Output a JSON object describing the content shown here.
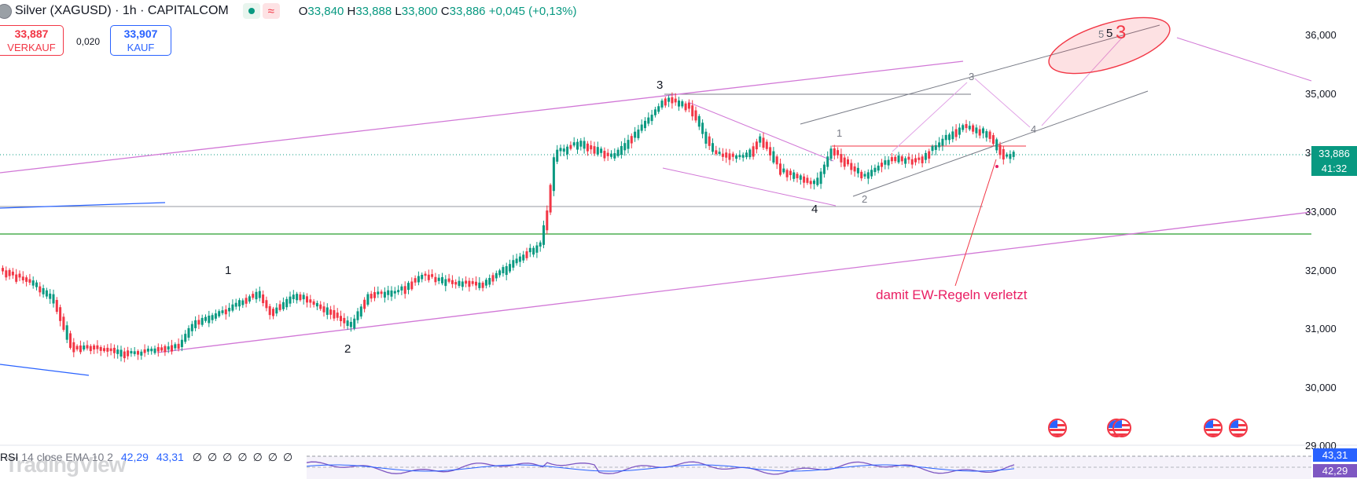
{
  "header": {
    "title": "Silver (XAGUSD) · 1h · CAPITALCOM",
    "open_label": "O",
    "open": "33,840",
    "high_label": "H",
    "high": "33,888",
    "low_label": "L",
    "low": "33,800",
    "close_label": "C",
    "close": "33,886",
    "change": "+0,045 (+0,13%)"
  },
  "trade": {
    "sell_price": "33,887",
    "sell_label": "VERKAUF",
    "spread": "0,020",
    "buy_price": "33,907",
    "buy_label": "KAUF"
  },
  "price_axis": {
    "ticks": [
      "36,000",
      "35,000",
      "34,000",
      "33,000",
      "32,000",
      "31,000",
      "30,000",
      "29,000"
    ],
    "current_price": "33,886",
    "countdown": "41:32"
  },
  "annotations": {
    "wave_labels": [
      "1",
      "2",
      "3",
      "4",
      "1",
      "2",
      "3",
      "4",
      "5",
      "5",
      "3"
    ],
    "note": "damit EW-Regeln verletzt"
  },
  "rsi": {
    "legend_name": "RSI",
    "legend_params": "14 close EMA 10 2",
    "value_a": "42,29",
    "value_b": "43,31",
    "empty_values": [
      "∅",
      "∅",
      "∅",
      "∅",
      "∅",
      "∅",
      "∅"
    ],
    "tag_top": "43,31",
    "tag_bottom": "42,29"
  },
  "watermark": "TradingView",
  "colors": {
    "up": "#089981",
    "down": "#f23645",
    "trend": "#d177d6",
    "blue_line": "#2962ff",
    "green_line": "#4caf50",
    "annotation": "#e91e63"
  },
  "icons": [
    "silver-symbol-icon",
    "market-open-icon",
    "wave-indicator-icon",
    "us-flag-icon"
  ]
}
